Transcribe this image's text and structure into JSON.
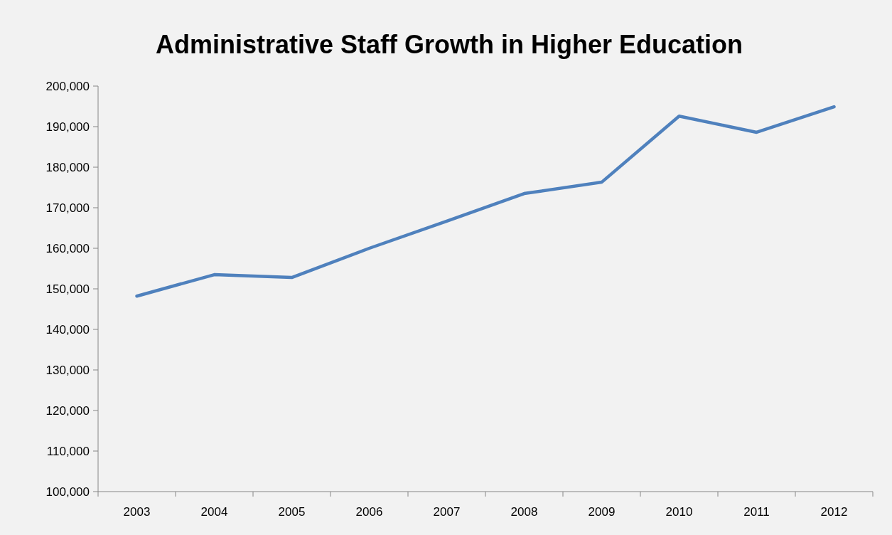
{
  "chart_data": {
    "type": "line",
    "title": "Administrative Staff Growth in Higher Education",
    "categories": [
      "2003",
      "2004",
      "2005",
      "2006",
      "2007",
      "2008",
      "2009",
      "2010",
      "2011",
      "2012"
    ],
    "series": [
      {
        "color": "#4f81bd",
        "values": [
          148200,
          153500,
          152800,
          160000,
          166700,
          173500,
          176300,
          192600,
          188600,
          194900
        ]
      }
    ],
    "ylim": [
      100000,
      200000
    ],
    "yticks": [
      {
        "value": 100000,
        "label": "100,000"
      },
      {
        "value": 110000,
        "label": "110,000"
      },
      {
        "value": 120000,
        "label": "120,000"
      },
      {
        "value": 130000,
        "label": "130,000"
      },
      {
        "value": 140000,
        "label": "140,000"
      },
      {
        "value": 150000,
        "label": "150,000"
      },
      {
        "value": 160000,
        "label": "160,000"
      },
      {
        "value": 170000,
        "label": "170,000"
      },
      {
        "value": 180000,
        "label": "180,000"
      },
      {
        "value": 190000,
        "label": "190,000"
      },
      {
        "value": 200000,
        "label": "200,000"
      }
    ],
    "grid": false,
    "marker": "none",
    "line_style": "solid"
  }
}
